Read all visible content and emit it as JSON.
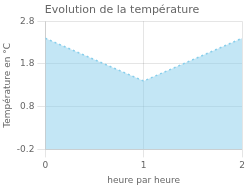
{
  "chart_data": {
    "type": "area",
    "title": "Evolution de la température",
    "xlabel": "heure par heure",
    "ylabel": "Température en °C",
    "x": [
      0,
      1,
      2
    ],
    "values": [
      2.4,
      1.4,
      2.4
    ],
    "xlim": [
      0,
      2
    ],
    "ylim": [
      -0.2,
      2.8
    ],
    "xticks": [
      0,
      1,
      2
    ],
    "yticks": [
      -0.2,
      0.8,
      1.8,
      2.8
    ],
    "color": "#87ceeb",
    "line_style": "dotted",
    "grid": true
  }
}
